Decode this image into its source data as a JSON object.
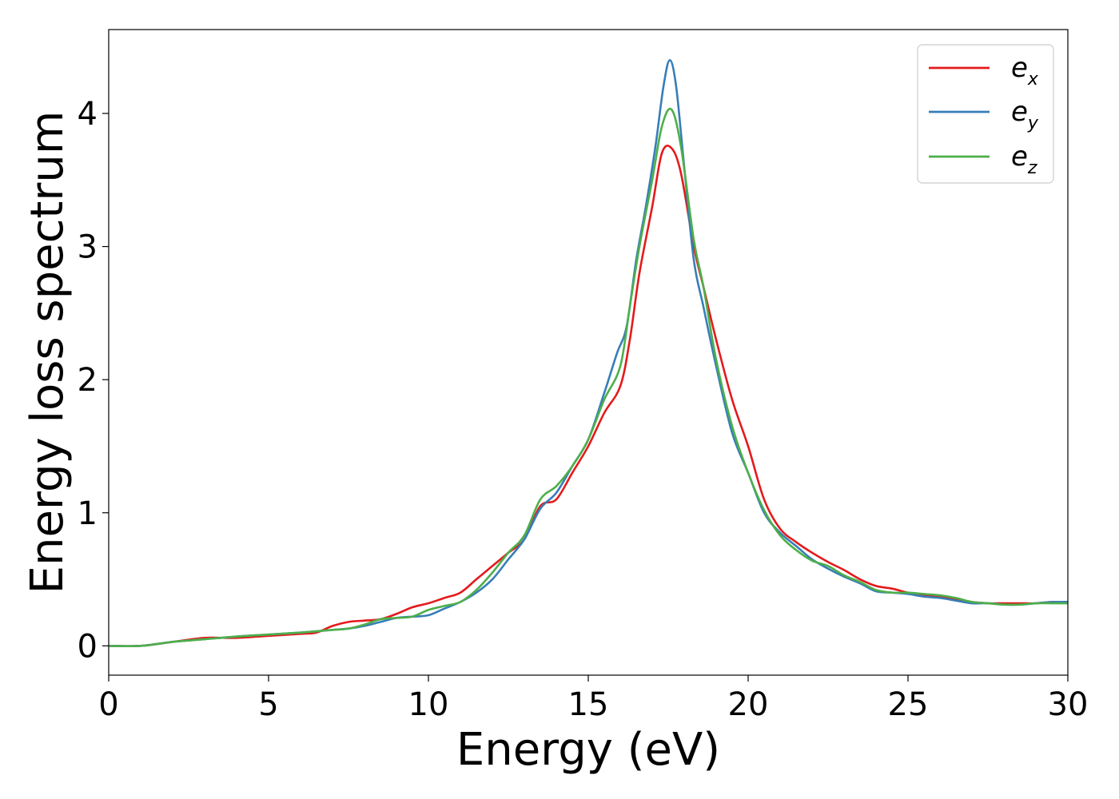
{
  "chart_data": {
    "type": "line",
    "title": "",
    "xlabel": "Energy (eV)",
    "ylabel": "Energy loss spectrum",
    "xlim": [
      0,
      30
    ],
    "ylim": [
      -0.22,
      4.63
    ],
    "xticks": [
      0,
      5,
      10,
      15,
      20,
      25,
      30
    ],
    "xtick_labels": [
      "0",
      "5",
      "10",
      "15",
      "20",
      "25",
      "30"
    ],
    "yticks": [
      0,
      1,
      2,
      3,
      4
    ],
    "ytick_labels": [
      "0",
      "1",
      "2",
      "3",
      "4"
    ],
    "grid": false,
    "legend_position": "top-right",
    "series": [
      {
        "name": "e_x",
        "legend_base": "e",
        "legend_sub": "x",
        "color": "#e41a1c",
        "x": [
          0,
          1,
          2,
          3,
          4,
          5,
          6,
          6.5,
          7,
          7.5,
          8,
          8.5,
          9,
          9.5,
          10,
          10.5,
          11,
          11.5,
          12,
          12.5,
          13,
          13.5,
          14,
          14.5,
          15,
          15.5,
          16,
          16.3,
          16.6,
          17,
          17.3,
          17.6,
          17.9,
          18.3,
          18.6,
          19,
          19.5,
          20,
          20.5,
          21,
          21.5,
          22,
          22.5,
          23,
          23.5,
          24,
          24.5,
          25,
          25.5,
          26,
          26.5,
          27,
          27.5,
          28,
          28.5,
          29,
          29.5,
          30
        ],
        "y": [
          0,
          0,
          0.03,
          0.06,
          0.06,
          0.075,
          0.09,
          0.1,
          0.15,
          0.18,
          0.19,
          0.2,
          0.24,
          0.29,
          0.32,
          0.36,
          0.4,
          0.5,
          0.6,
          0.7,
          0.8,
          1.05,
          1.1,
          1.3,
          1.5,
          1.75,
          1.95,
          2.3,
          2.8,
          3.3,
          3.7,
          3.74,
          3.55,
          3.0,
          2.7,
          2.3,
          1.85,
          1.5,
          1.1,
          0.88,
          0.78,
          0.7,
          0.63,
          0.57,
          0.5,
          0.45,
          0.43,
          0.4,
          0.38,
          0.37,
          0.35,
          0.33,
          0.32,
          0.32,
          0.32,
          0.32,
          0.33,
          0.33
        ]
      },
      {
        "name": "e_y",
        "legend_base": "e",
        "legend_sub": "y",
        "color": "#377eb8",
        "x": [
          0,
          1,
          2,
          3,
          4,
          5,
          6,
          6.5,
          7,
          7.5,
          8,
          8.5,
          9,
          9.5,
          10,
          10.5,
          11,
          11.5,
          12,
          12.5,
          13,
          13.5,
          14,
          14.5,
          15,
          15.5,
          15.9,
          16.2,
          16.5,
          16.8,
          17.1,
          17.35,
          17.55,
          17.75,
          18,
          18.3,
          18.6,
          19,
          19.5,
          20,
          20.5,
          21,
          21.5,
          22,
          22.5,
          23,
          23.5,
          24,
          24.5,
          25,
          25.5,
          26,
          26.5,
          27,
          27.5,
          28,
          28.5,
          29,
          29.5,
          30
        ],
        "y": [
          0,
          0,
          0.03,
          0.05,
          0.07,
          0.085,
          0.1,
          0.11,
          0.12,
          0.13,
          0.15,
          0.18,
          0.21,
          0.22,
          0.23,
          0.28,
          0.33,
          0.4,
          0.5,
          0.65,
          0.8,
          1.03,
          1.15,
          1.35,
          1.55,
          1.9,
          2.2,
          2.4,
          2.9,
          3.3,
          3.75,
          4.2,
          4.4,
          4.2,
          3.6,
          2.9,
          2.55,
          2.1,
          1.6,
          1.3,
          1.0,
          0.85,
          0.75,
          0.65,
          0.58,
          0.52,
          0.47,
          0.41,
          0.4,
          0.39,
          0.37,
          0.36,
          0.34,
          0.32,
          0.32,
          0.31,
          0.31,
          0.32,
          0.33,
          0.33
        ]
      },
      {
        "name": "e_z",
        "legend_base": "e",
        "legend_sub": "z",
        "color": "#4daf4a",
        "x": [
          0,
          1,
          2,
          3,
          4,
          5,
          6,
          6.5,
          7,
          7.5,
          8,
          8.5,
          9,
          9.5,
          10,
          10.5,
          11,
          11.5,
          12,
          12.5,
          13,
          13.5,
          14,
          14.5,
          15,
          15.5,
          16,
          16.3,
          16.6,
          17,
          17.3,
          17.6,
          17.9,
          18.3,
          18.6,
          19,
          19.5,
          20,
          20.5,
          21,
          21.5,
          22,
          22.5,
          23,
          23.5,
          24,
          24.5,
          25,
          25.5,
          26,
          26.5,
          27,
          27.5,
          28,
          28.5,
          29,
          29.5,
          30
        ],
        "y": [
          0,
          0,
          0.03,
          0.05,
          0.07,
          0.085,
          0.1,
          0.11,
          0.12,
          0.13,
          0.16,
          0.2,
          0.21,
          0.22,
          0.27,
          0.3,
          0.33,
          0.42,
          0.55,
          0.7,
          0.83,
          1.1,
          1.2,
          1.35,
          1.55,
          1.85,
          2.1,
          2.55,
          3.0,
          3.5,
          3.9,
          4.03,
          3.75,
          3.05,
          2.7,
          2.15,
          1.65,
          1.3,
          1.02,
          0.83,
          0.72,
          0.64,
          0.6,
          0.53,
          0.48,
          0.42,
          0.4,
          0.4,
          0.39,
          0.38,
          0.36,
          0.33,
          0.32,
          0.31,
          0.31,
          0.32,
          0.32,
          0.32
        ]
      }
    ]
  }
}
